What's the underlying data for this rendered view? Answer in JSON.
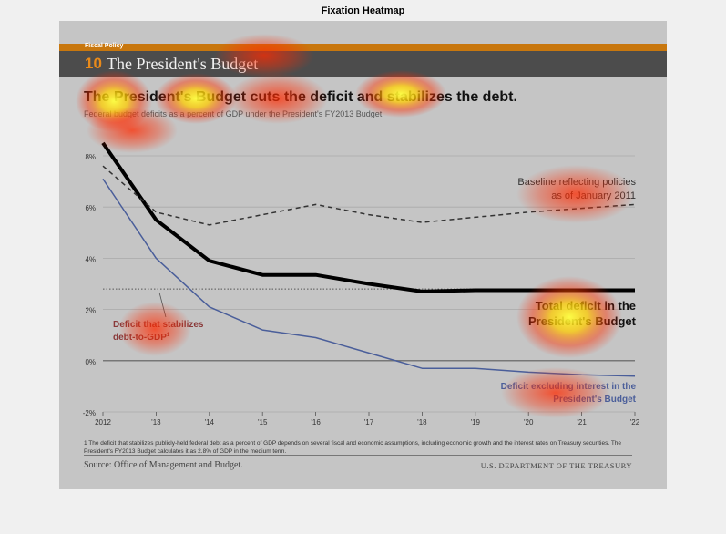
{
  "figure_title": "Fixation Heatmap",
  "doc": {
    "section_label": "Fiscal Policy",
    "section_number": "10",
    "section_title": "The President's Budget",
    "headline": "The President's Budget cuts the deficit and stabilizes the debt.",
    "subheadline": "Federal budget deficits as a percent of GDP under the President's FY2013 Budget",
    "footnote": "1 The deficit that stabilizes publicly-held federal debt as a percent of GDP depends on several fiscal and economic assumptions, including economic growth and the interest rates on Treasury securities. The President's FY2013 Budget calculates it as 2.8% of GDP in the medium term.",
    "source": "Source: Office of Management and Budget.",
    "agency": "U.S. DEPARTMENT OF THE TREASURY"
  },
  "chart_data": {
    "type": "line",
    "title": "The President's Budget cuts the deficit and stabilizes the debt.",
    "subtitle": "Federal budget deficits as a percent of GDP under the President's FY2013 Budget",
    "x": [
      2012,
      2013,
      2014,
      2015,
      2016,
      2017,
      2018,
      2019,
      2020,
      2021,
      2022
    ],
    "x_tick_labels": [
      "2012",
      "'13",
      "'14",
      "'15",
      "'16",
      "'17",
      "'18",
      "'19",
      "'20",
      "'21",
      "'22"
    ],
    "y_tick_values": [
      -2,
      0,
      2,
      4,
      6,
      8
    ],
    "y_tick_labels": [
      "-2%",
      "0%",
      "2%",
      "4%",
      "6%",
      "8%"
    ],
    "xlim": [
      2012,
      2022
    ],
    "ylim": [
      -2,
      9
    ],
    "stabilizing_level": 2.8,
    "series": [
      {
        "name": "Total deficit in the President's Budget",
        "style": "solid-thick",
        "color": "#000000",
        "values": [
          8.5,
          5.5,
          3.9,
          3.35,
          3.35,
          3.0,
          2.7,
          2.75,
          2.75,
          2.75,
          2.75
        ]
      },
      {
        "name": "Baseline reflecting policies as of January 2011",
        "style": "dashed",
        "color": "#333333",
        "values": [
          7.6,
          5.8,
          5.3,
          5.7,
          6.1,
          5.7,
          5.4,
          5.6,
          5.8,
          5.95,
          6.1
        ]
      },
      {
        "name": "Deficit excluding interest in the President's Budget",
        "style": "solid-thin",
        "color": "#4a5e9a",
        "values": [
          7.1,
          4.0,
          2.1,
          1.2,
          0.9,
          0.3,
          -0.3,
          -0.3,
          -0.45,
          -0.55,
          -0.6
        ]
      }
    ],
    "annotations": {
      "baseline_line1": "Baseline reflecting policies",
      "baseline_line2": "as of January 2011",
      "total_line1": "Total deficit in the",
      "total_line2": "President's Budget",
      "stabilizes_line1": "Deficit that stabilizes",
      "stabilizes_line2": "debt-to-GDP",
      "stabilizes_sup": "1",
      "excl_line1": "Deficit excluding interest in the",
      "excl_line2": "President's Budget"
    },
    "colors": {
      "total": "#000000",
      "baseline": "#333333",
      "excluding_interest": "#4a5e9a",
      "stabilizes_label": "#8a3a3a",
      "accent_orange": "#c8770e"
    }
  },
  "heatmap": {
    "description": "Fixation heatmap overlay (red = low, yellow = high intensity)"
  }
}
